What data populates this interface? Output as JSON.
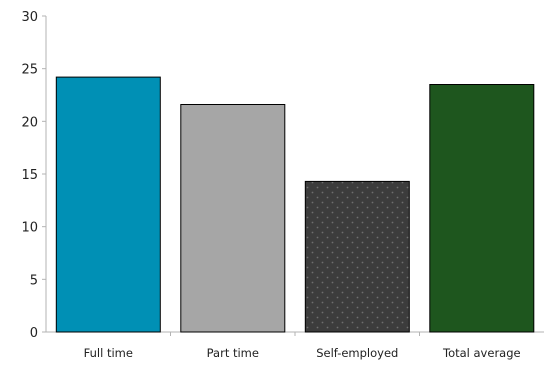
{
  "chart_data": {
    "type": "bar",
    "title": "",
    "xlabel": "",
    "ylabel": "",
    "categories": [
      "Full time",
      "Part time",
      "Self-employed",
      "Total average"
    ],
    "values": [
      24.2,
      21.6,
      14.3,
      23.5
    ],
    "ylim": [
      0,
      30
    ],
    "yticks": [
      "0",
      "5",
      "10",
      "15",
      "20",
      "25",
      "30"
    ],
    "grid": false,
    "legend": "none",
    "bar_colors": [
      "#0090B5",
      "#A6A6A6",
      "#3C3C3C",
      "#1E561E"
    ],
    "bar_patterns": [
      "solid",
      "solid",
      "dotted",
      "solid"
    ],
    "dot_color": "#6E6E6E",
    "axis_color": "#B3B3B3",
    "bar_outline_color": "#000000"
  }
}
